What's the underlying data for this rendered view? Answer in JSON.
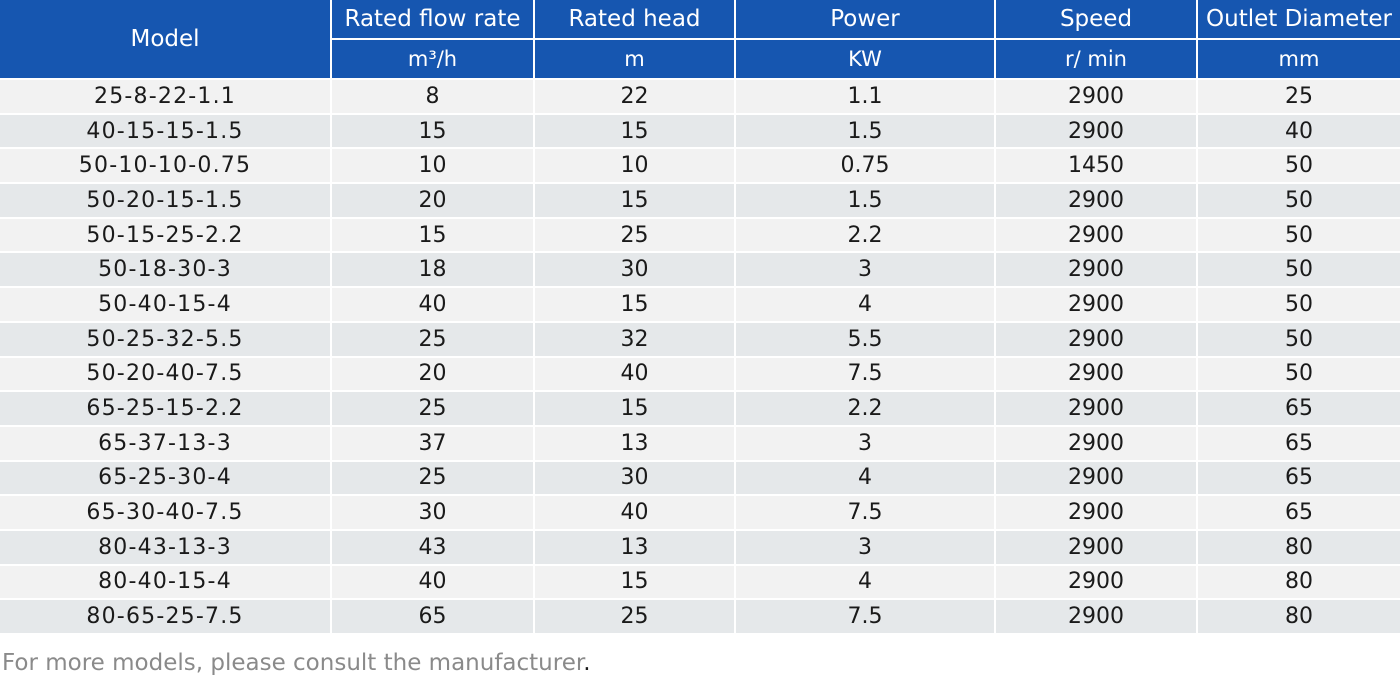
{
  "table": {
    "headers": {
      "model": "Model",
      "flow": "Rated flow rate",
      "head": "Rated head",
      "power": "Power",
      "speed": "Speed",
      "outlet": "Outlet Diameter"
    },
    "units": {
      "flow": "m³/h",
      "head": "m",
      "power": "KW",
      "speed": "r/ min",
      "outlet": "mm"
    },
    "rows": [
      [
        "25-8-22-1.1",
        "8",
        "22",
        "1.1",
        "2900",
        "25"
      ],
      [
        "40-15-15-1.5",
        "15",
        "15",
        "1.5",
        "2900",
        "40"
      ],
      [
        "50-10-10-0.75",
        "10",
        "10",
        "0.75",
        "1450",
        "50"
      ],
      [
        "50-20-15-1.5",
        "20",
        "15",
        "1.5",
        "2900",
        "50"
      ],
      [
        "50-15-25-2.2",
        "15",
        "25",
        "2.2",
        "2900",
        "50"
      ],
      [
        "50-18-30-3",
        "18",
        "30",
        "3",
        "2900",
        "50"
      ],
      [
        "50-40-15-4",
        "40",
        "15",
        "4",
        "2900",
        "50"
      ],
      [
        "50-25-32-5.5",
        "25",
        "32",
        "5.5",
        "2900",
        "50"
      ],
      [
        "50-20-40-7.5",
        "20",
        "40",
        "7.5",
        "2900",
        "50"
      ],
      [
        "65-25-15-2.2",
        "25",
        "15",
        "2.2",
        "2900",
        "65"
      ],
      [
        "65-37-13-3",
        "37",
        "13",
        "3",
        "2900",
        "65"
      ],
      [
        "65-25-30-4",
        "25",
        "30",
        "4",
        "2900",
        "65"
      ],
      [
        "65-30-40-7.5",
        "30",
        "40",
        "7.5",
        "2900",
        "65"
      ],
      [
        "80-43-13-3",
        "43",
        "13",
        "3",
        "2900",
        "80"
      ],
      [
        "80-40-15-4",
        "40",
        "15",
        "4",
        "2900",
        "80"
      ],
      [
        "80-65-25-7.5",
        "65",
        "25",
        "7.5",
        "2900",
        "80"
      ]
    ]
  },
  "note": {
    "text": "For more models, please consult the manufacturer",
    "end": "."
  },
  "colors": {
    "header_bg": "#1656b0",
    "row_light": "#f2f2f2",
    "row_dark": "#e5e8ea",
    "note_text": "#8a8a8a"
  }
}
